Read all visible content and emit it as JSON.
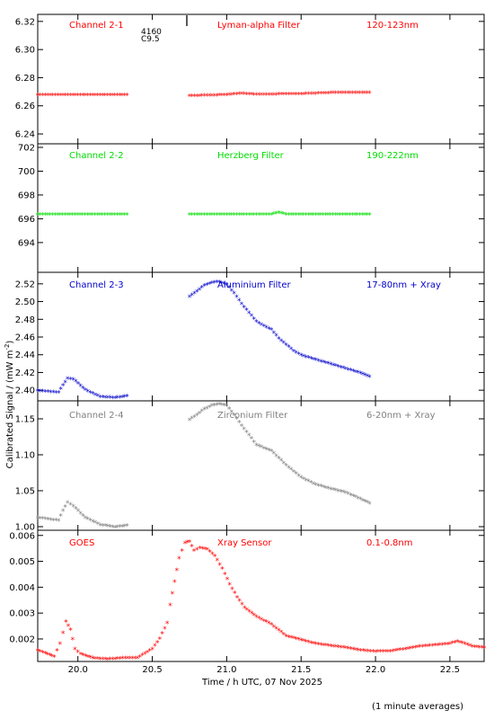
{
  "figure": {
    "ylabel": "Calibrated Signal / (mW m",
    "ylabel_sup": "-2",
    "ylabel_end": ")",
    "xlabel": "Time / h UTC, 07 Nov 2025",
    "footnote": "(1 minute averages)",
    "top_annotation_line1": "4160",
    "top_annotation_line2": "C9.5",
    "x_ticks": [
      "20.0",
      "20.5",
      "21.0",
      "21.5",
      "22.0",
      "22.5"
    ]
  },
  "chart_data": [
    {
      "type": "scatter",
      "panel_label": "Channel 2-1",
      "filter": "Lyman-alpha Filter",
      "band": "120-123nm",
      "color": "#ff0000",
      "xlim": [
        19.73,
        22.73
      ],
      "ylim": [
        6.233,
        6.325
      ],
      "yticks": [
        "6.24",
        "6.26",
        "6.28",
        "6.30",
        "6.32"
      ],
      "segments": [
        {
          "x": [
            19.73,
            20.0,
            20.33
          ],
          "y": [
            6.2675,
            6.2675,
            6.2675
          ]
        },
        {
          "x": [
            20.75,
            21.0,
            21.1,
            21.2,
            21.5,
            21.7,
            21.96
          ],
          "y": [
            6.2668,
            6.2675,
            6.2685,
            6.2678,
            6.2682,
            6.269,
            6.269
          ]
        }
      ]
    },
    {
      "type": "scatter",
      "panel_label": "Channel 2-2",
      "filter": "Herzberg Filter",
      "band": "190-222nm",
      "color": "#00dd00",
      "xlim": [
        19.73,
        22.73
      ],
      "ylim": [
        691.5,
        702.3
      ],
      "yticks": [
        "694",
        "696",
        "698",
        "700",
        "702"
      ],
      "segments": [
        {
          "x": [
            19.73,
            20.33
          ],
          "y": [
            696.35,
            696.35
          ]
        },
        {
          "x": [
            20.75,
            21.3,
            21.35,
            21.4,
            21.96
          ],
          "y": [
            696.35,
            696.35,
            696.5,
            696.35,
            696.35
          ]
        }
      ]
    },
    {
      "type": "scatter",
      "panel_label": "Channel 2-3",
      "filter": "Aluminium Filter",
      "band": "17-80nm + Xray",
      "color": "#0000cc",
      "xlim": [
        19.73,
        22.73
      ],
      "ylim": [
        2.388,
        2.533
      ],
      "yticks": [
        "2.40",
        "2.42",
        "2.44",
        "2.46",
        "2.48",
        "2.50",
        "2.52"
      ],
      "segments": [
        {
          "x": [
            19.73,
            19.8,
            19.87,
            19.9,
            19.93,
            19.97,
            20.05,
            20.15,
            20.25,
            20.33
          ],
          "y": [
            2.399,
            2.398,
            2.397,
            2.405,
            2.413,
            2.412,
            2.4,
            2.392,
            2.391,
            2.393
          ]
        },
        {
          "x": [
            20.75,
            20.8,
            20.85,
            20.9,
            20.95,
            21.0,
            21.05,
            21.1,
            21.15,
            21.2,
            21.25,
            21.3,
            21.35,
            21.4,
            21.45,
            21.5,
            21.6,
            21.7,
            21.8,
            21.9,
            21.96
          ],
          "y": [
            2.505,
            2.511,
            2.518,
            2.521,
            2.522,
            2.519,
            2.509,
            2.497,
            2.487,
            2.477,
            2.472,
            2.468,
            2.458,
            2.451,
            2.444,
            2.439,
            2.434,
            2.429,
            2.424,
            2.419,
            2.415
          ]
        }
      ]
    },
    {
      "type": "scatter",
      "panel_label": "Channel 2-4",
      "filter": "Zirconium Filter",
      "band": "6-20nm + Xray",
      "color": "#808080",
      "xlim": [
        19.73,
        22.73
      ],
      "ylim": [
        0.995,
        1.175
      ],
      "yticks": [
        "1.00",
        "1.05",
        "1.10",
        "1.15"
      ],
      "segments": [
        {
          "x": [
            19.73,
            19.8,
            19.87,
            19.9,
            19.93,
            19.97,
            20.05,
            20.15,
            20.25,
            20.33
          ],
          "y": [
            1.012,
            1.01,
            1.008,
            1.022,
            1.033,
            1.028,
            1.012,
            1.002,
            0.999,
            1.001
          ]
        },
        {
          "x": [
            20.75,
            20.8,
            20.85,
            20.9,
            20.95,
            21.0,
            21.05,
            21.1,
            21.15,
            21.2,
            21.3,
            21.4,
            21.5,
            21.6,
            21.7,
            21.8,
            21.9,
            21.96
          ],
          "y": [
            1.148,
            1.155,
            1.163,
            1.168,
            1.17,
            1.168,
            1.155,
            1.14,
            1.127,
            1.113,
            1.105,
            1.085,
            1.068,
            1.058,
            1.052,
            1.047,
            1.038,
            1.032
          ]
        }
      ]
    },
    {
      "type": "scatter",
      "panel_label": "GOES",
      "filter": "Xray Sensor",
      "band": "0.1-0.8nm",
      "color": "#ff0000",
      "xlim": [
        19.73,
        22.73
      ],
      "ylim": [
        0.00113,
        0.0062
      ],
      "yticks": [
        "0.002",
        "0.003",
        "0.004",
        "0.005",
        "0.006"
      ],
      "segments": [
        {
          "x": [
            19.73,
            19.78,
            19.84,
            19.88,
            19.92,
            19.95,
            19.98,
            20.02,
            20.1,
            20.2,
            20.3,
            20.4,
            20.5,
            20.55,
            20.6,
            20.62,
            20.65,
            20.68,
            20.72,
            20.75,
            20.78,
            20.82,
            20.87,
            20.92,
            20.97,
            21.02,
            21.07,
            21.12,
            21.2,
            21.3,
            21.4,
            21.5,
            21.6,
            21.7,
            21.8,
            21.9,
            22.0,
            22.1,
            22.2,
            22.3,
            22.4,
            22.5,
            22.55,
            22.6,
            22.65,
            22.73
          ],
          "y": [
            0.00155,
            0.00145,
            0.0013,
            0.0018,
            0.00265,
            0.00235,
            0.0016,
            0.0014,
            0.00125,
            0.0012,
            0.00125,
            0.00125,
            0.0016,
            0.002,
            0.0026,
            0.0033,
            0.0042,
            0.0051,
            0.0057,
            0.00575,
            0.0054,
            0.0055,
            0.00545,
            0.0052,
            0.0047,
            0.0041,
            0.0036,
            0.0032,
            0.00285,
            0.00255,
            0.0021,
            0.00195,
            0.0018,
            0.00172,
            0.00165,
            0.00155,
            0.0015,
            0.00152,
            0.0016,
            0.0017,
            0.00175,
            0.0018,
            0.0019,
            0.0018,
            0.0017,
            0.00165
          ]
        }
      ]
    }
  ]
}
